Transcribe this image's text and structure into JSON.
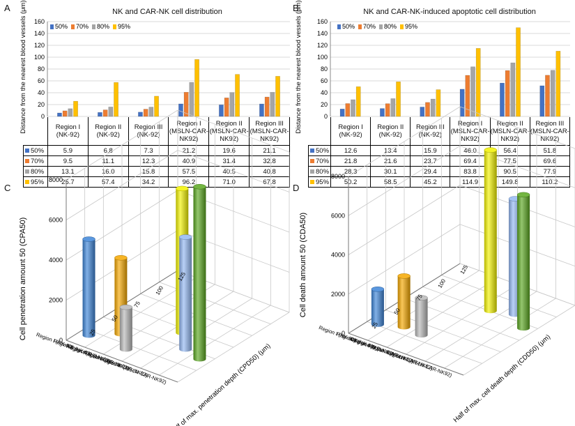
{
  "panels": {
    "A": {
      "letter": "A",
      "title": "NK and CAR-NK cell distribution",
      "ylabel": "Distance from the nearest blood vessels (μm)",
      "header_labels": [
        "Region I (NK-92)",
        "Region II (NK-92)",
        "Region III (NK-92)",
        "Region I (MSLN-CAR-NK92)",
        "Region II (MSLN-CAR-NK92)",
        "Region III (MSLN-CAR-NK92)"
      ],
      "row_labels": [
        "50%",
        "70%",
        "80%",
        "95%"
      ],
      "table": [
        [
          "5.9",
          "6.8",
          "7.3",
          "21.2",
          "19.6",
          "21.1"
        ],
        [
          "9.5",
          "11.1",
          "12.3",
          "40.9",
          "31.4",
          "32.8"
        ],
        [
          "13.1",
          "16.0",
          "15.8",
          "57.5",
          "40.5",
          "40.8"
        ],
        [
          "25.7",
          "57.4",
          "34.2",
          "96.2",
          "71.0",
          "67.8"
        ]
      ]
    },
    "B": {
      "letter": "B",
      "title": "NK and CAR-NK-induced apoptotic cell distribution",
      "ylabel": "Distance from the nearest blood vessels (μm)",
      "header_labels": [
        "Region I (NK-92)",
        "Region II (NK-92)",
        "Region III (NK-92)",
        "Region I (MSLN-CAR-NK92)",
        "Region II (MSLN-CAR-NK92)",
        "Region III (MSLN-CAR-NK92)"
      ],
      "row_labels": [
        "50%",
        "70%",
        "80%",
        "95%"
      ],
      "table": [
        [
          "12.6",
          "13.4",
          "15.9",
          "46.0",
          "56.4",
          "51.8"
        ],
        [
          "21.8",
          "21.6",
          "23.7",
          "69.4",
          "77.5",
          "69.6"
        ],
        [
          "28.3",
          "30.1",
          "29.4",
          "83.8",
          "90.5",
          "77.9"
        ],
        [
          "50.2",
          "58.5",
          "45.2",
          "114.9",
          "149.8",
          "110.2"
        ]
      ]
    },
    "C": {
      "letter": "C",
      "zlabel": "Cell penetration amount 50 (CPA50)",
      "xlabel": "Half of max. penetration depth (CPD50) (μm)"
    },
    "D": {
      "letter": "D",
      "zlabel": "Cell death amount 50 (CDA50)",
      "xlabel": "Half of max. cell death depth (CDD50) (μm)"
    }
  },
  "colors": {
    "s50": "#4472C4",
    "s70": "#ED7D31",
    "s80": "#A5A5A5",
    "s95": "#FFC000",
    "c_region1_nk": "#3D85D8",
    "c_region2_nk": "#F5A800",
    "c_region3_nk": "#B8B8B8",
    "c_region1_car": "#F2F200",
    "c_region2_car": "#94B8F2",
    "c_region3_car": "#5AA820"
  },
  "chart_data": [
    {
      "type": "bar",
      "title": "NK and CAR-NK cell distribution",
      "ylabel": "Distance from the nearest blood vessels (μm)",
      "ylim": [
        0,
        160
      ],
      "yticks": [
        "0",
        "20",
        "40",
        "60",
        "80",
        "100",
        "120",
        "140",
        "160"
      ],
      "categories": [
        "Region I (NK-92)",
        "Region II (NK-92)",
        "Region III (NK-92)",
        "Region I (MSLN-CAR-NK92)",
        "Region II (MSLN-CAR-NK92)",
        "Region III (MSLN-CAR-NK92)"
      ],
      "legend": "top-left",
      "series": [
        {
          "name": "50%",
          "values": [
            5.9,
            6.8,
            7.3,
            21.2,
            19.6,
            21.1
          ]
        },
        {
          "name": "70%",
          "values": [
            9.5,
            11.1,
            12.3,
            40.9,
            31.4,
            32.8
          ]
        },
        {
          "name": "80%",
          "values": [
            13.1,
            16.0,
            15.8,
            57.5,
            40.5,
            40.8
          ]
        },
        {
          "name": "95%",
          "values": [
            25.7,
            57.4,
            34.2,
            96.2,
            71.0,
            67.8
          ]
        }
      ]
    },
    {
      "type": "bar",
      "title": "NK and CAR-NK-induced apoptotic cell distribution",
      "ylabel": "Distance from the nearest blood vessels (μm)",
      "ylim": [
        0,
        160
      ],
      "yticks": [
        "0",
        "20",
        "40",
        "60",
        "80",
        "100",
        "120",
        "140",
        "160"
      ],
      "categories": [
        "Region I (NK-92)",
        "Region II (NK-92)",
        "Region III (NK-92)",
        "Region I (MSLN-CAR-NK92)",
        "Region II (MSLN-CAR-NK92)",
        "Region III (MSLN-CAR-NK92)"
      ],
      "legend": "top-left",
      "series": [
        {
          "name": "50%",
          "values": [
            12.6,
            13.4,
            15.9,
            46.0,
            56.4,
            51.8
          ]
        },
        {
          "name": "70%",
          "values": [
            21.8,
            21.6,
            23.7,
            69.4,
            77.5,
            69.6
          ]
        },
        {
          "name": "80%",
          "values": [
            28.3,
            30.1,
            29.4,
            83.8,
            90.5,
            77.9
          ]
        },
        {
          "name": "95%",
          "values": [
            50.2,
            58.5,
            45.2,
            114.9,
            149.8,
            110.2
          ]
        }
      ]
    },
    {
      "type": "bar3d",
      "zlabel": "Cell penetration amount 50 (CPA50)",
      "xlabel": "Half of max. penetration depth (CPD50) (μm)",
      "zlim": [
        0,
        8000
      ],
      "zticks": [
        "0",
        "2000",
        "4000",
        "6000",
        "8000"
      ],
      "xticks": [
        "0",
        "25",
        "50",
        "75",
        "100",
        "125"
      ],
      "categories": [
        "Region I (NK-92)",
        "Region II (NK-92)",
        "Region III (NK-92)",
        "Region I (MSLN-CAR-NK92)",
        "Region II (MSLN-CAR-NK92)",
        "Region III (MSLN-CAR-NK92)"
      ],
      "x_values": [
        15,
        30,
        15,
        57,
        40,
        35
      ],
      "z_values": [
        4800,
        3800,
        2100,
        7200,
        5600,
        8600
      ]
    },
    {
      "type": "bar3d",
      "zlabel": "Cell death amount 50 (CDA50)",
      "xlabel": "Half of max. cell death depth (CDD50) (μm)",
      "zlim": [
        0,
        8000
      ],
      "zticks": [
        "0",
        "2000",
        "4000",
        "6000",
        "8000"
      ],
      "xticks": [
        "0",
        "25",
        "50",
        "75",
        "100",
        "125"
      ],
      "categories": [
        "Region I (NK-92)",
        "Region II (NK-92)",
        "Region III (NK-92)",
        "Region I (MSLN-CAR-NK92)",
        "Region II (MSLN-CAR-NK92)",
        "Region III (MSLN-CAR-NK92)"
      ],
      "x_values": [
        22,
        30,
        28,
        84,
        90,
        78
      ],
      "z_values": [
        1800,
        2600,
        1900,
        8200,
        5900,
        6800
      ]
    }
  ]
}
